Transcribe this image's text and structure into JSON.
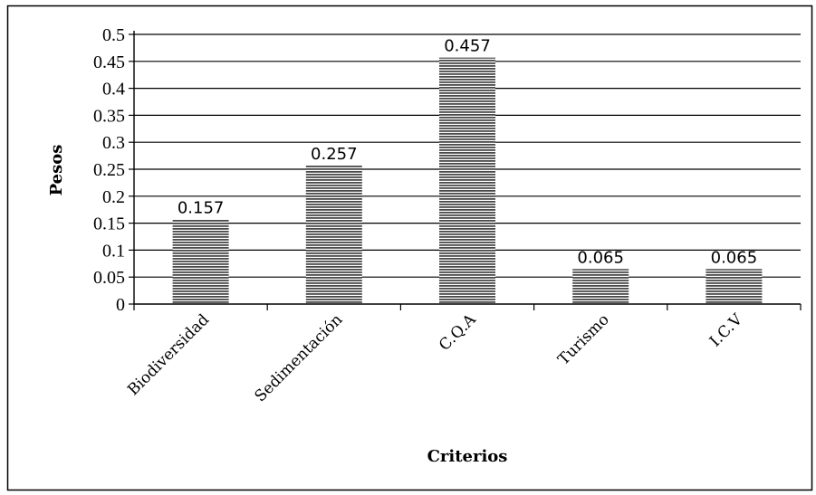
{
  "chart_data": {
    "type": "bar",
    "title": "",
    "xlabel": "Criterios",
    "ylabel": "Pesos",
    "categories": [
      "Biodiversidad",
      "Sedimentación",
      "C.Q.A",
      "Turismo",
      "I.C.V"
    ],
    "values": [
      0.157,
      0.257,
      0.457,
      0.065,
      0.065
    ],
    "data_labels": [
      "0.157",
      "0.257",
      "0.457",
      "0.065",
      "0.065"
    ],
    "ylim": [
      0,
      0.5
    ],
    "yticks": [
      0,
      0.05,
      0.1,
      0.15,
      0.2,
      0.25,
      0.3,
      0.35,
      0.4,
      0.45,
      0.5
    ],
    "ytick_labels": [
      "0",
      "0.05",
      "0.1",
      "0.15",
      "0.2",
      "0.25",
      "0.3",
      "0.35",
      "0.4",
      "0.45",
      "0.5"
    ],
    "grid": true,
    "legend": "none",
    "bar_color": "#4a4a4a",
    "bar_pattern": "horizontal-stripes"
  }
}
